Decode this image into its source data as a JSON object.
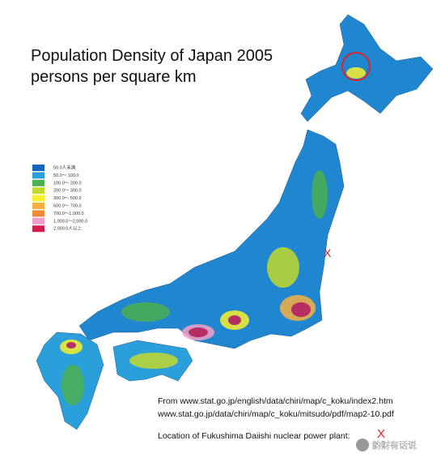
{
  "header": {
    "title": "Population Density of Japan 2005",
    "subtitle": "persons per square km"
  },
  "legend": {
    "items": [
      {
        "label": "50.0人未満",
        "color": "#1565c0"
      },
      {
        "label": "50.0〜 100.0",
        "color": "#2b9fd9"
      },
      {
        "label": "100.0〜 200.0",
        "color": "#4caf50"
      },
      {
        "label": "200.0〜 300.0",
        "color": "#c2d92e"
      },
      {
        "label": "300.0〜 500.0",
        "color": "#f7ef2c"
      },
      {
        "label": "500.0〜 700.0",
        "color": "#f5b041"
      },
      {
        "label": "700.0〜1,000.0",
        "color": "#f08a36"
      },
      {
        "label": "1,000.0〜2,000.0",
        "color": "#f2a0c6"
      },
      {
        "label": "2,000.0人以上",
        "color": "#d01e50"
      }
    ]
  },
  "source": {
    "lines": [
      "From www.stat.go.jp/english/data/chiri/map/c_koku/index2.htm",
      "www.stat.go.jp/data/chiri/map/c_koku/mitsudo/pdf/map2-10.pdf"
    ]
  },
  "location": {
    "text": "Location of Fukushima Daiishi nuclear power plant:",
    "marker": "X"
  },
  "watermark": "韵财有话说"
}
